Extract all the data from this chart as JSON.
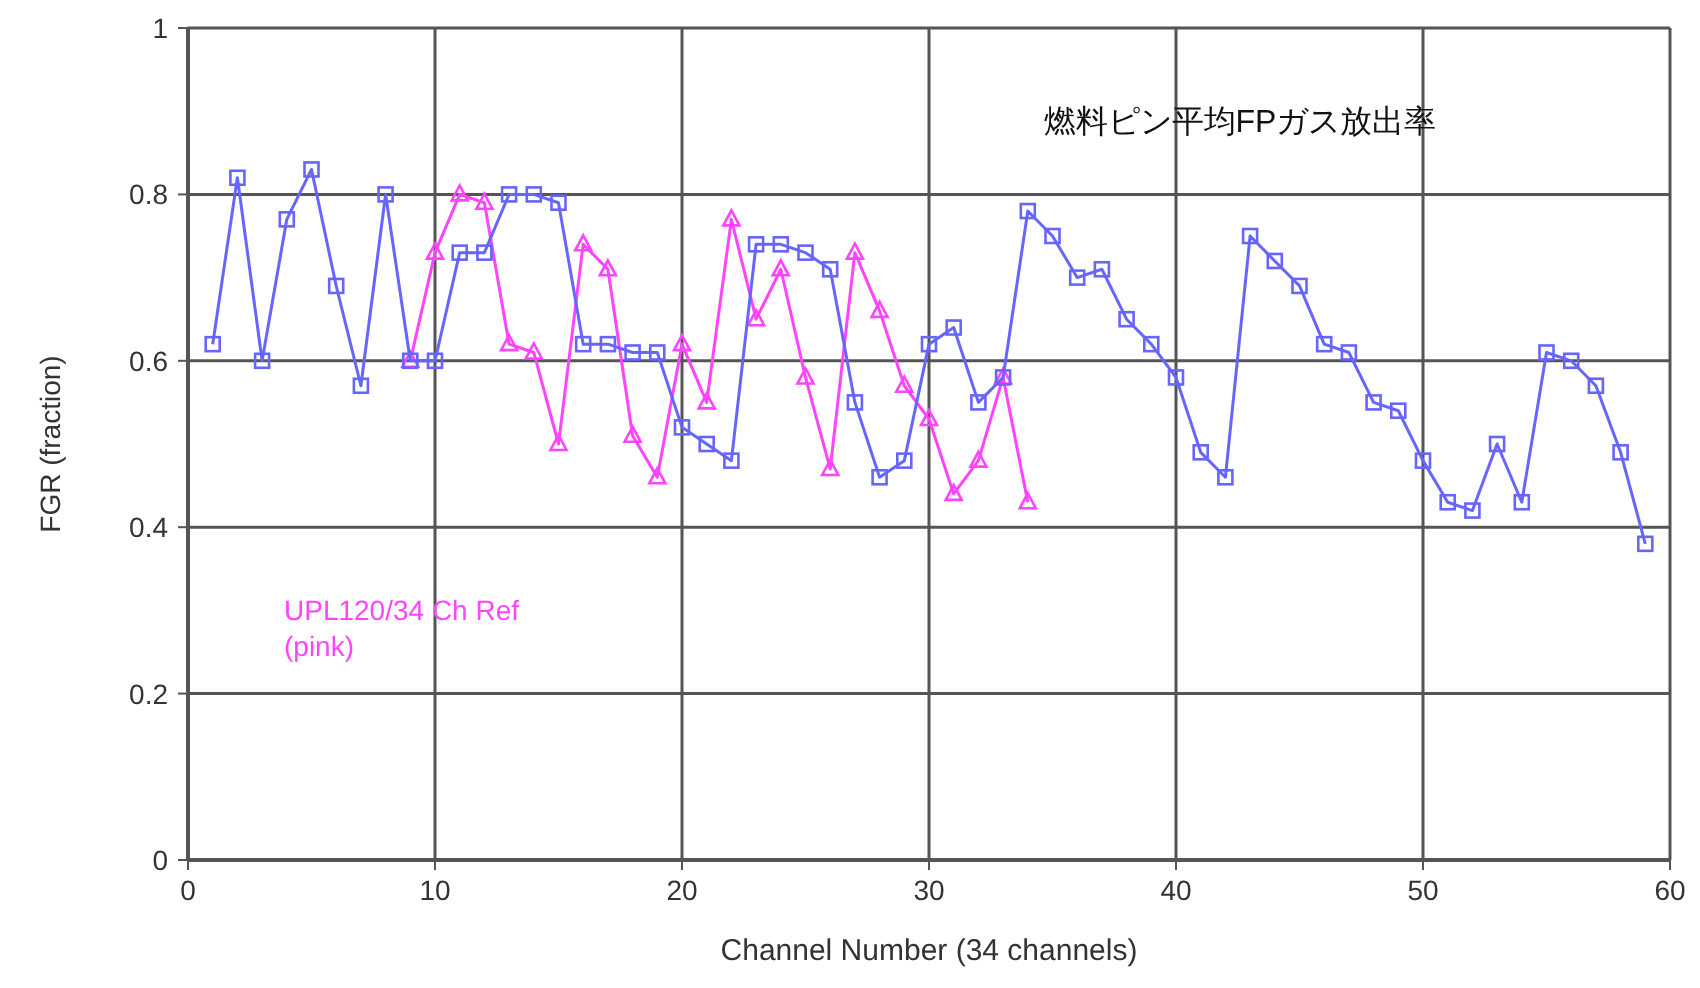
{
  "chart_data": {
    "type": "line",
    "title": "燃料ピン平均FPガス放出率",
    "xlabel": "Channel Number (34 channels)",
    "ylabel": "FGR (fraction)",
    "xlim": [
      0,
      60
    ],
    "xticks": [
      0,
      10,
      20,
      30,
      40,
      50,
      60
    ],
    "ylim": [
      0,
      1
    ],
    "yticks": [
      0,
      0.2,
      0.4,
      0.6,
      0.8,
      1
    ],
    "grid": true,
    "annotations": [
      "UPL120/34 Ch Ref",
      "(pink)"
    ],
    "series": [
      {
        "color": "#6666ff",
        "marker": "square",
        "x": [
          1,
          2,
          3,
          4,
          5,
          6,
          7,
          8,
          9,
          10,
          11,
          12,
          13,
          14,
          15,
          16,
          17,
          18,
          19,
          20,
          21,
          22,
          23,
          24,
          25,
          26,
          27,
          28,
          29,
          30,
          31,
          32,
          33,
          34,
          35,
          36,
          37,
          38,
          39,
          40,
          41,
          42,
          43,
          44,
          45,
          46,
          47,
          48,
          49,
          50,
          51,
          52,
          53,
          54,
          55,
          56,
          57,
          58,
          59
        ],
        "values": [
          0.62,
          0.82,
          0.6,
          0.77,
          0.83,
          0.69,
          0.57,
          0.8,
          0.6,
          0.6,
          0.73,
          0.73,
          0.8,
          0.8,
          0.79,
          0.62,
          0.62,
          0.61,
          0.61,
          0.52,
          0.5,
          0.48,
          0.74,
          0.74,
          0.73,
          0.71,
          0.55,
          0.46,
          0.48,
          0.62,
          0.64,
          0.55,
          0.58,
          0.78,
          0.75,
          0.7,
          0.71,
          0.65,
          0.62,
          0.58,
          0.49,
          0.46,
          0.75,
          0.72,
          0.69,
          0.62,
          0.61,
          0.55,
          0.54,
          0.48,
          0.43,
          0.42,
          0.5,
          0.43,
          0.61,
          0.6,
          0.57,
          0.49,
          0.38
        ]
      },
      {
        "color": "#ff44ff",
        "marker": "triangle",
        "x": [
          9,
          10,
          11,
          12,
          13,
          14,
          15,
          16,
          17,
          18,
          19,
          20,
          21,
          22,
          23,
          24,
          25,
          26,
          27,
          28,
          29,
          30,
          31,
          32,
          33,
          34
        ],
        "values": [
          0.6,
          0.73,
          0.8,
          0.79,
          0.62,
          0.61,
          0.5,
          0.74,
          0.71,
          0.51,
          0.46,
          0.62,
          0.55,
          0.77,
          0.65,
          0.71,
          0.58,
          0.47,
          0.73,
          0.66,
          0.57,
          0.53,
          0.44,
          0.48,
          0.58,
          0.43
        ]
      }
    ]
  }
}
